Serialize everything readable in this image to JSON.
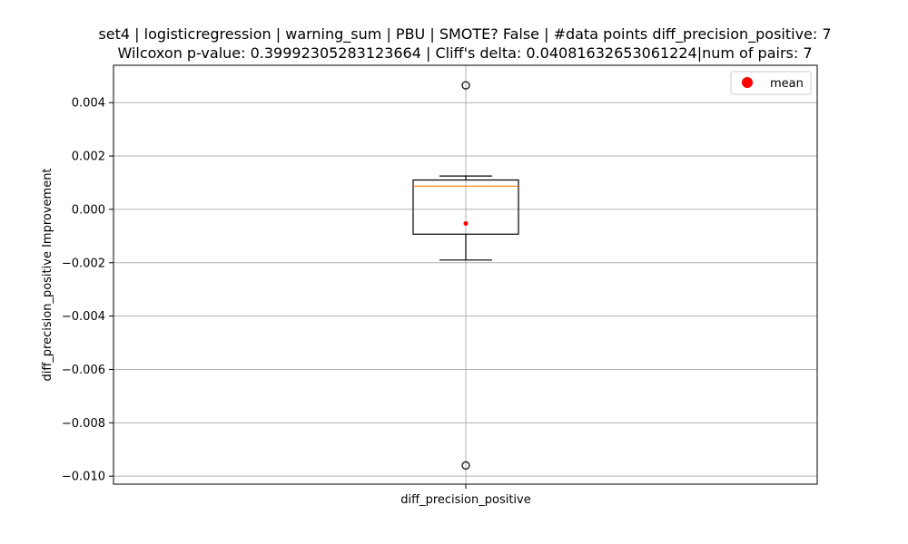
{
  "chart_data": {
    "type": "box",
    "title_line1": "set4 | logisticregression | warning_sum | PBU | SMOTE? False | #data points diff_precision_positive: 7",
    "title_line2": "Wilcoxon p-value: 0.39992305283123664 | Cliff's delta: 0.04081632653061224|num of pairs: 7",
    "xlabel": "",
    "ylabel": "diff_precision_positive Improvement",
    "categories": [
      "diff_precision_positive"
    ],
    "ylim": [
      -0.0103,
      0.0054
    ],
    "yticks": [
      0.004,
      0.002,
      0.0,
      -0.002,
      -0.004,
      -0.006,
      -0.008,
      -0.01
    ],
    "ytick_labels": [
      "0.004",
      "0.002",
      "0.000",
      "−0.002",
      "−0.004",
      "−0.006",
      "−0.008",
      "−0.010"
    ],
    "grid": true,
    "legend": {
      "placement": "top-right",
      "entries": [
        {
          "label": "mean",
          "color": "#ff0000",
          "marker": "circle"
        }
      ]
    },
    "box": {
      "whisker_high": 0.00125,
      "q3": 0.0011,
      "median": 0.00087,
      "q1": -0.00093,
      "whisker_low": -0.0019,
      "mean": -0.00053,
      "outliers": [
        0.00465,
        -0.0096
      ]
    },
    "colors": {
      "box": "#000000",
      "median": "#ff7f0e",
      "mean": "#ff0000",
      "grid": "#b0b0b0"
    }
  }
}
